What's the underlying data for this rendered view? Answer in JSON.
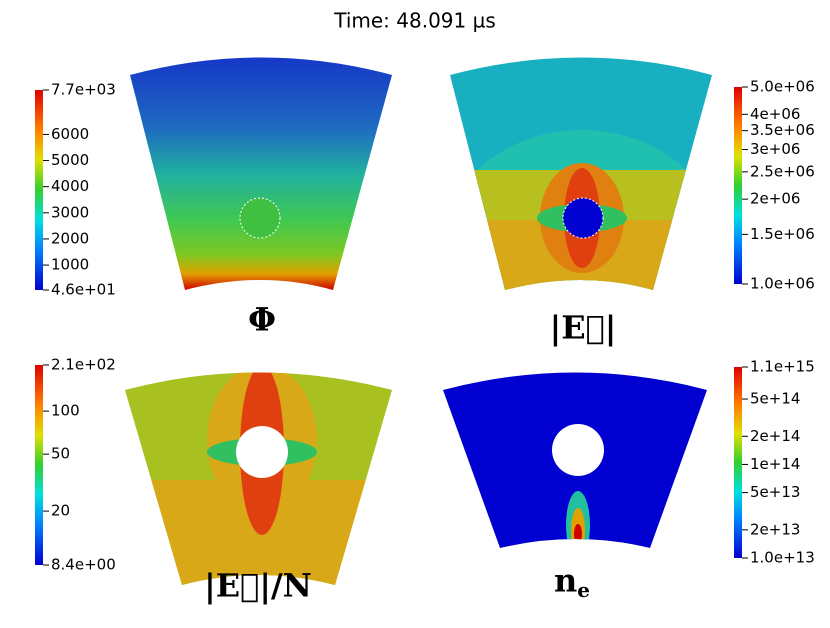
{
  "title": "Time: 48.091 µs",
  "panels": [
    {
      "label": "Φ",
      "colorbar": {
        "scale": "linear",
        "lim": [
          46,
          7700
        ],
        "ticks": [
          {
            "value": 46,
            "label": "4.6e+01"
          },
          1000,
          2000,
          3000,
          4000,
          5000,
          6000,
          {
            "value": 7700,
            "label": "7.7e+03"
          }
        ]
      }
    },
    {
      "label": "|E⃗|",
      "colorbar": {
        "scale": "log",
        "lim": [
          1000000,
          5000000
        ],
        "ticks": [
          {
            "value": 1000000,
            "label": "1.0e+06"
          },
          {
            "value": 1500000,
            "label": "1.5e+06"
          },
          {
            "value": 2000000,
            "label": "2e+06"
          },
          {
            "value": 2500000,
            "label": "2.5e+06"
          },
          {
            "value": 3000000,
            "label": "3e+06"
          },
          {
            "value": 3500000,
            "label": "3.5e+06"
          },
          {
            "value": 4000000,
            "label": "4e+06"
          },
          {
            "value": 5000000,
            "label": "5.0e+06"
          }
        ]
      }
    },
    {
      "label": "|E⃗|/N",
      "colorbar": {
        "scale": "log",
        "lim": [
          8.4,
          210
        ],
        "ticks": [
          {
            "value": 8.4,
            "label": "8.4e+00"
          },
          20,
          50,
          100,
          {
            "value": 210,
            "label": "2.1e+02"
          }
        ]
      }
    },
    {
      "label": "n",
      "label_subscript": "e",
      "colorbar": {
        "scale": "log",
        "lim": [
          10000000000000,
          1100000000000000
        ],
        "ticks": [
          {
            "value": 10000000000000,
            "label": "1.0e+13"
          },
          {
            "value": 20000000000000,
            "label": "2e+13"
          },
          {
            "value": 50000000000000,
            "label": "5e+13"
          },
          {
            "value": 100000000000000,
            "label": "1e+14"
          },
          {
            "value": 200000000000000,
            "label": "2e+14"
          },
          {
            "value": 500000000000000,
            "label": "5e+14"
          },
          {
            "value": 1100000000000000,
            "label": "1.1e+15"
          }
        ]
      }
    }
  ]
}
